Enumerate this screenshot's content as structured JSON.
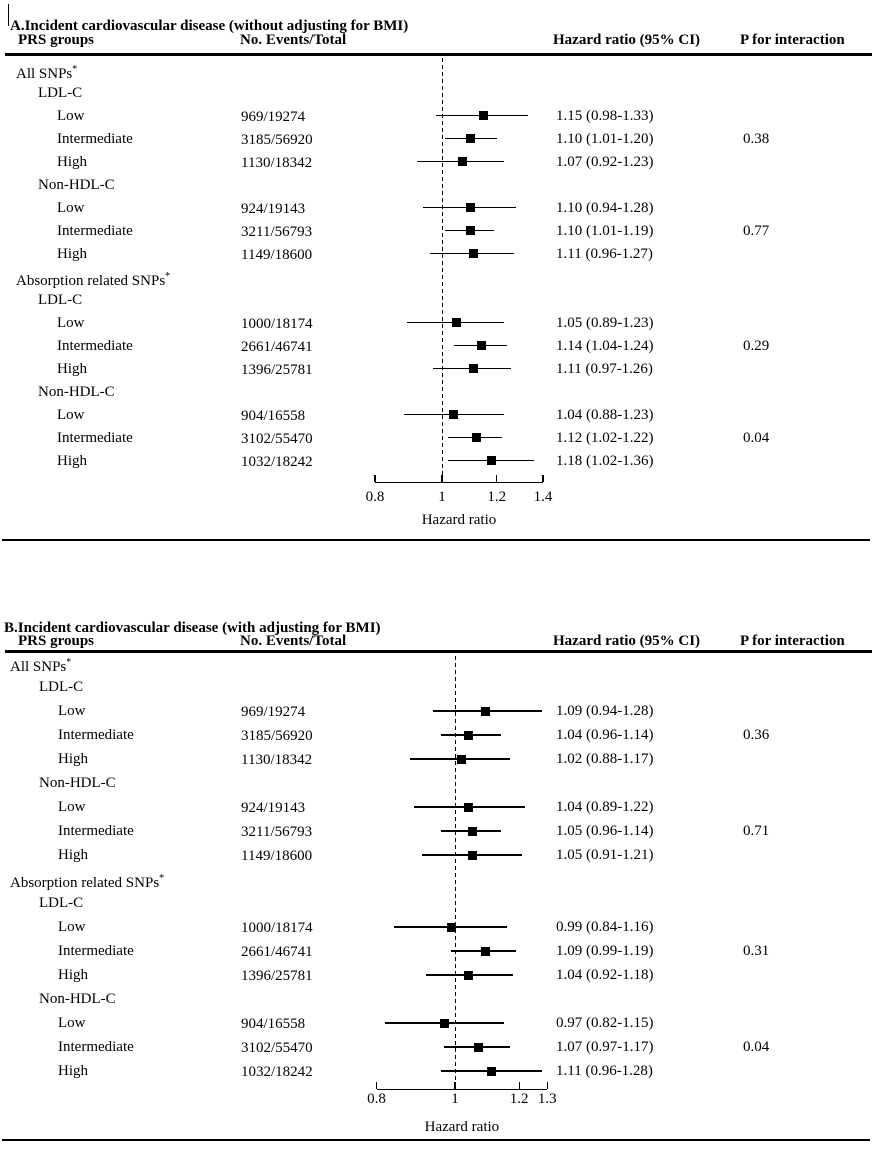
{
  "figure": {
    "background": "#ffffff",
    "foreground": "#000000",
    "marker_color": "#000000",
    "reference_line_style": "dashed"
  },
  "chart_data": [
    {
      "type": "forest",
      "panel_id": "A",
      "title": "A.Incident cardiovascular disease (without adjusting for BMI)",
      "columns": {
        "group": "PRS groups",
        "events": "No. Events/Total",
        "hr": "Hazard ratio (95% CI)",
        "p": "P for interaction"
      },
      "axis": {
        "scale": "log",
        "label": "Hazard ratio",
        "range": [
          0.8,
          1.4
        ],
        "reference_line": 1,
        "ticks": [
          {
            "value": 0.8,
            "label": "0.8"
          },
          {
            "value": 1,
            "label": "1"
          },
          {
            "value": 1.2,
            "label": "1.2"
          },
          {
            "value": 1.4,
            "label": "1.4"
          }
        ]
      },
      "rows": [
        {
          "type": "group",
          "label": "All SNPs",
          "sup": "*"
        },
        {
          "type": "sub",
          "label": "LDL-C"
        },
        {
          "type": "item",
          "label": "Low",
          "events": "969/19274",
          "hr": 1.15,
          "ci_low": 0.98,
          "ci_high": 1.33,
          "hr_text": "1.15 (0.98-1.33)",
          "p": ""
        },
        {
          "type": "item",
          "label": "Intermediate",
          "events": "3185/56920",
          "hr": 1.1,
          "ci_low": 1.01,
          "ci_high": 1.2,
          "hr_text": "1.10 (1.01-1.20)",
          "p": "0.38"
        },
        {
          "type": "item",
          "label": "High",
          "events": "1130/18342",
          "hr": 1.07,
          "ci_low": 0.92,
          "ci_high": 1.23,
          "hr_text": "1.07 (0.92-1.23)",
          "p": ""
        },
        {
          "type": "sub",
          "label": "Non-HDL-C"
        },
        {
          "type": "item",
          "label": "Low",
          "events": "924/19143",
          "hr": 1.1,
          "ci_low": 0.94,
          "ci_high": 1.28,
          "hr_text": "1.10 (0.94-1.28)",
          "p": ""
        },
        {
          "type": "item",
          "label": "Intermediate",
          "events": "3211/56793",
          "hr": 1.1,
          "ci_low": 1.01,
          "ci_high": 1.19,
          "hr_text": "1.10 (1.01-1.19)",
          "p": "0.77"
        },
        {
          "type": "item",
          "label": "High",
          "events": "1149/18600",
          "hr": 1.11,
          "ci_low": 0.96,
          "ci_high": 1.27,
          "hr_text": "1.11 (0.96-1.27)",
          "p": ""
        },
        {
          "type": "group",
          "label": "Absorption related SNPs",
          "sup": "*"
        },
        {
          "type": "sub",
          "label": "LDL-C"
        },
        {
          "type": "item",
          "label": "Low",
          "events": "1000/18174",
          "hr": 1.05,
          "ci_low": 0.89,
          "ci_high": 1.23,
          "hr_text": "1.05 (0.89-1.23)",
          "p": ""
        },
        {
          "type": "item",
          "label": "Intermediate",
          "events": "2661/46741",
          "hr": 1.14,
          "ci_low": 1.04,
          "ci_high": 1.24,
          "hr_text": "1.14 (1.04-1.24)",
          "p": "0.29"
        },
        {
          "type": "item",
          "label": "High",
          "events": "1396/25781",
          "hr": 1.11,
          "ci_low": 0.97,
          "ci_high": 1.26,
          "hr_text": "1.11 (0.97-1.26)",
          "p": ""
        },
        {
          "type": "sub",
          "label": "Non-HDL-C"
        },
        {
          "type": "item",
          "label": "Low",
          "events": "904/16558",
          "hr": 1.04,
          "ci_low": 0.88,
          "ci_high": 1.23,
          "hr_text": "1.04 (0.88-1.23)",
          "p": ""
        },
        {
          "type": "item",
          "label": "Intermediate",
          "events": "3102/55470",
          "hr": 1.12,
          "ci_low": 1.02,
          "ci_high": 1.22,
          "hr_text": "1.12 (1.02-1.22)",
          "p": "0.04"
        },
        {
          "type": "item",
          "label": "High",
          "events": "1032/18242",
          "hr": 1.18,
          "ci_low": 1.02,
          "ci_high": 1.36,
          "hr_text": "1.18 (1.02-1.36)",
          "p": ""
        }
      ]
    },
    {
      "type": "forest",
      "panel_id": "B",
      "title": "B.Incident cardiovascular disease (with adjusting for BMI)",
      "columns": {
        "group": "PRS groups",
        "events": "No. Events/Total",
        "hr": "Hazard ratio (95% CI)",
        "p": "P for interaction"
      },
      "axis": {
        "scale": "log",
        "label": "Hazard ratio",
        "range": [
          0.8,
          1.3
        ],
        "reference_line": 1,
        "ticks": [
          {
            "value": 0.8,
            "label": "0.8"
          },
          {
            "value": 1,
            "label": "1"
          },
          {
            "value": 1.2,
            "label": "1.2"
          },
          {
            "value": 1.3,
            "label": "1.3"
          }
        ]
      },
      "rows": [
        {
          "type": "group",
          "label": "All SNPs",
          "sup": "*"
        },
        {
          "type": "sub",
          "label": "LDL-C"
        },
        {
          "type": "item",
          "label": "Low",
          "events": "969/19274",
          "hr": 1.09,
          "ci_low": 0.94,
          "ci_high": 1.28,
          "hr_text": "1.09 (0.94-1.28)",
          "p": ""
        },
        {
          "type": "item",
          "label": "Intermediate",
          "events": "3185/56920",
          "hr": 1.04,
          "ci_low": 0.96,
          "ci_high": 1.14,
          "hr_text": "1.04 (0.96-1.14)",
          "p": "0.36"
        },
        {
          "type": "item",
          "label": "High",
          "events": "1130/18342",
          "hr": 1.02,
          "ci_low": 0.88,
          "ci_high": 1.17,
          "hr_text": "1.02 (0.88-1.17)",
          "p": ""
        },
        {
          "type": "sub",
          "label": "Non-HDL-C"
        },
        {
          "type": "item",
          "label": "Low",
          "events": "924/19143",
          "hr": 1.04,
          "ci_low": 0.89,
          "ci_high": 1.22,
          "hr_text": "1.04 (0.89-1.22)",
          "p": ""
        },
        {
          "type": "item",
          "label": "Intermediate",
          "events": "3211/56793",
          "hr": 1.05,
          "ci_low": 0.96,
          "ci_high": 1.14,
          "hr_text": "1.05 (0.96-1.14)",
          "p": "0.71"
        },
        {
          "type": "item",
          "label": "High",
          "events": "1149/18600",
          "hr": 1.05,
          "ci_low": 0.91,
          "ci_high": 1.21,
          "hr_text": "1.05 (0.91-1.21)",
          "p": ""
        },
        {
          "type": "group",
          "label": "Absorption related SNPs",
          "sup": "*"
        },
        {
          "type": "sub",
          "label": "LDL-C"
        },
        {
          "type": "item",
          "label": "Low",
          "events": "1000/18174",
          "hr": 0.99,
          "ci_low": 0.84,
          "ci_high": 1.16,
          "hr_text": "0.99 (0.84-1.16)",
          "p": ""
        },
        {
          "type": "item",
          "label": "Intermediate",
          "events": "2661/46741",
          "hr": 1.09,
          "ci_low": 0.99,
          "ci_high": 1.19,
          "hr_text": "1.09 (0.99-1.19)",
          "p": "0.31"
        },
        {
          "type": "item",
          "label": "High",
          "events": "1396/25781",
          "hr": 1.04,
          "ci_low": 0.92,
          "ci_high": 1.18,
          "hr_text": "1.04 (0.92-1.18)",
          "p": ""
        },
        {
          "type": "sub",
          "label": "Non-HDL-C"
        },
        {
          "type": "item",
          "label": "Low",
          "events": "904/16558",
          "hr": 0.97,
          "ci_low": 0.82,
          "ci_high": 1.15,
          "hr_text": "0.97 (0.82-1.15)",
          "p": ""
        },
        {
          "type": "item",
          "label": "Intermediate",
          "events": "3102/55470",
          "hr": 1.07,
          "ci_low": 0.97,
          "ci_high": 1.17,
          "hr_text": "1.07 (0.97-1.17)",
          "p": "0.04"
        },
        {
          "type": "item",
          "label": "High",
          "events": "1032/18242",
          "hr": 1.11,
          "ci_low": 0.96,
          "ci_high": 1.28,
          "hr_text": "1.11 (0.96-1.28)",
          "p": ""
        }
      ]
    }
  ]
}
